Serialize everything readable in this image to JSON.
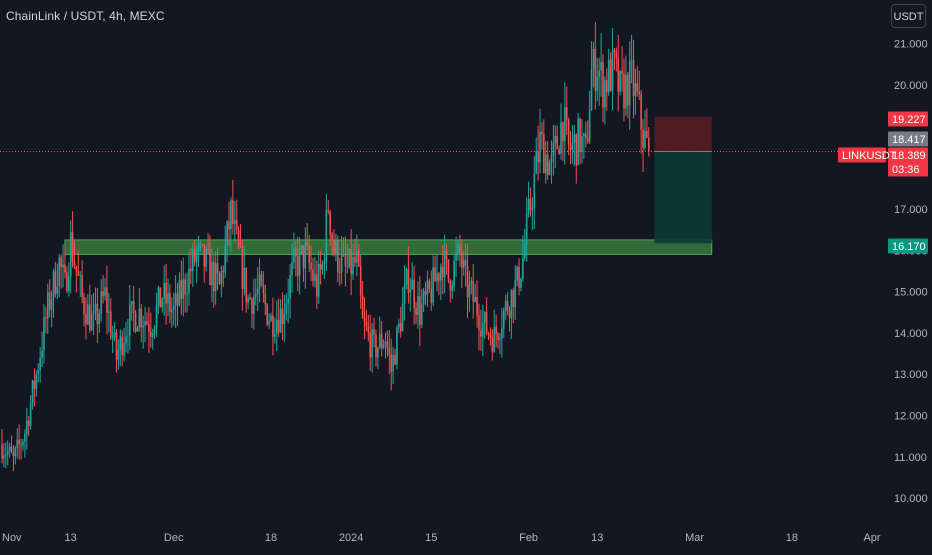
{
  "header": {
    "title": "ChainLink / USDT, 4h, MEXC",
    "currency_button": "USDT"
  },
  "colors": {
    "background": "#131722",
    "up": "#26a69a",
    "down": "#ef5350",
    "support_zone": "#4caf50",
    "axis_text": "#b2b5be",
    "last_price_line": "#ef5350"
  },
  "chart_data": {
    "type": "candlestick",
    "symbol": "LINKUSDT",
    "timeframe": "4h",
    "exchange": "MEXC",
    "y_ticks": [
      10.0,
      11.0,
      12.0,
      13.0,
      14.0,
      15.0,
      16.0,
      17.0,
      20.0,
      21.0
    ],
    "y_tick_labels": [
      "10.000",
      "11.000",
      "12.000",
      "13.000",
      "14.000",
      "15.000",
      "16.000",
      "17.000",
      "20.000",
      "21.000"
    ],
    "x_tick_labels": [
      "Nov",
      "13",
      "Dec",
      "18",
      "2024",
      "15",
      "Feb",
      "13",
      "Mar",
      "18",
      "Apr"
    ],
    "x_tick_dates": [
      "2023-11-01",
      "2023-11-13",
      "2023-12-01",
      "2023-12-18",
      "2024-01-01",
      "2024-01-15",
      "2024-02-01",
      "2024-02-13",
      "2024-03-01",
      "2024-03-18",
      "2024-04-01"
    ],
    "price_path": [
      [
        "2023-11-01",
        11.3
      ],
      [
        "2023-11-03",
        10.9
      ],
      [
        "2023-11-05",
        11.6
      ],
      [
        "2023-11-07",
        13.0
      ],
      [
        "2023-11-09",
        14.6
      ],
      [
        "2023-11-11",
        15.7
      ],
      [
        "2023-11-12",
        15.1
      ],
      [
        "2023-11-13",
        16.2
      ],
      [
        "2023-11-15",
        14.8
      ],
      [
        "2023-11-17",
        14.2
      ],
      [
        "2023-11-19",
        14.9
      ],
      [
        "2023-11-21",
        13.4
      ],
      [
        "2023-11-23",
        14.3
      ],
      [
        "2023-11-25",
        14.5
      ],
      [
        "2023-11-27",
        14.2
      ],
      [
        "2023-11-29",
        14.9
      ],
      [
        "2023-12-01",
        14.5
      ],
      [
        "2023-12-03",
        15.2
      ],
      [
        "2023-12-05",
        15.9
      ],
      [
        "2023-12-07",
        15.6
      ],
      [
        "2023-12-09",
        15.1
      ],
      [
        "2023-12-11",
        16.9
      ],
      [
        "2023-12-12",
        16.1
      ],
      [
        "2023-12-14",
        14.8
      ],
      [
        "2023-12-16",
        15.0
      ],
      [
        "2023-12-18",
        14.3
      ],
      [
        "2023-12-20",
        14.5
      ],
      [
        "2023-12-22",
        15.6
      ],
      [
        "2023-12-24",
        15.9
      ],
      [
        "2023-12-26",
        15.1
      ],
      [
        "2023-12-27",
        15.6
      ],
      [
        "2023-12-28",
        17.1
      ],
      [
        "2023-12-29",
        16.0
      ],
      [
        "2023-12-31",
        15.5
      ],
      [
        "2024-01-02",
        15.7
      ],
      [
        "2024-01-03",
        14.2
      ],
      [
        "2024-01-05",
        13.6
      ],
      [
        "2024-01-07",
        13.9
      ],
      [
        "2024-01-08",
        13.1
      ],
      [
        "2024-01-10",
        14.6
      ],
      [
        "2024-01-11",
        15.4
      ],
      [
        "2024-01-13",
        14.5
      ],
      [
        "2024-01-15",
        15.0
      ],
      [
        "2024-01-17",
        15.8
      ],
      [
        "2024-01-18",
        15.3
      ],
      [
        "2024-01-20",
        15.9
      ],
      [
        "2024-01-21",
        15.2
      ],
      [
        "2024-01-23",
        14.6
      ],
      [
        "2024-01-24",
        14.2
      ],
      [
        "2024-01-26",
        13.9
      ],
      [
        "2024-01-28",
        14.6
      ],
      [
        "2024-01-30",
        15.2
      ],
      [
        "2024-01-31",
        15.8
      ],
      [
        "2024-02-01",
        16.8
      ],
      [
        "2024-02-03",
        18.6
      ],
      [
        "2024-02-05",
        18.0
      ],
      [
        "2024-02-07",
        19.2
      ],
      [
        "2024-02-08",
        18.4
      ],
      [
        "2024-02-10",
        18.7
      ],
      [
        "2024-02-11",
        18.3
      ],
      [
        "2024-02-12",
        20.3
      ],
      [
        "2024-02-13",
        20.5
      ],
      [
        "2024-02-14",
        20.0
      ],
      [
        "2024-02-16",
        20.4
      ],
      [
        "2024-02-17",
        19.8
      ],
      [
        "2024-02-19",
        20.1
      ],
      [
        "2024-02-20",
        19.6
      ],
      [
        "2024-02-21",
        18.8
      ],
      [
        "2024-02-22",
        18.389
      ]
    ],
    "last_price": {
      "label": "LINKUSDT",
      "price": "18.389",
      "countdown": "03:36"
    },
    "stop_level": {
      "price": "19.227",
      "value": 19.227
    },
    "gray_level": {
      "price": "18.417",
      "value": 18.417
    },
    "target_level": {
      "price": "16.170",
      "value": 16.17
    },
    "support_zone": {
      "from_date": "2023-11-12",
      "to_date": "2024-03-04",
      "low": 15.9,
      "high": 16.25
    },
    "short_position": {
      "from_date": "2024-02-23",
      "to_date": "2024-03-04",
      "entry": 18.389,
      "stop": 19.227,
      "target": 16.17
    }
  }
}
